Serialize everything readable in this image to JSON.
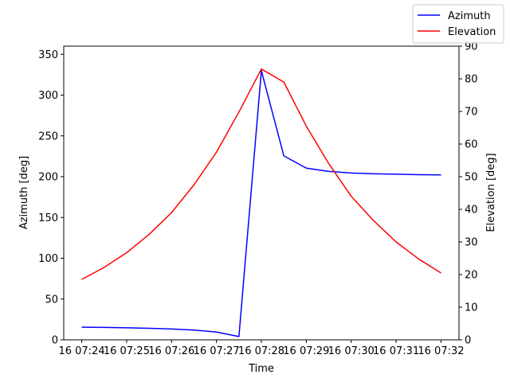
{
  "chart_data": {
    "type": "line",
    "x_axis": {
      "label": "Time",
      "ticks": [
        "16 07:24",
        "16 07:25",
        "16 07:26",
        "16 07:27",
        "16 07:28",
        "16 07:29",
        "16 07:30",
        "16 07:31",
        "16 07:32"
      ],
      "range_minutes": [
        23.6,
        32.4
      ]
    },
    "y_axis_left": {
      "label": "Azimuth [deg]",
      "range": [
        0,
        360
      ],
      "ticks": [
        0,
        50,
        100,
        150,
        200,
        250,
        300,
        350
      ]
    },
    "y_axis_right": {
      "label": "Elevation [deg]",
      "range": [
        0,
        90
      ],
      "ticks": [
        0,
        10,
        20,
        30,
        40,
        50,
        60,
        70,
        80,
        90
      ]
    },
    "series": [
      {
        "name": "Azimuth",
        "axis": "left",
        "color": "#0000ff",
        "x": [
          "07:24:00",
          "07:24:30",
          "07:25:00",
          "07:25:30",
          "07:26:00",
          "07:26:30",
          "07:27:00",
          "07:27:30",
          "07:28:00",
          "07:28:30",
          "07:29:00",
          "07:29:30",
          "07:30:00",
          "07:30:30",
          "07:31:00",
          "07:31:30",
          "07:32:00"
        ],
        "values": [
          15.5,
          15.2,
          14.8,
          14.2,
          13.3,
          12.0,
          9.5,
          4.0,
          330.0,
          225.5,
          210.5,
          206.5,
          204.5,
          203.5,
          203.0,
          202.5,
          202.2
        ]
      },
      {
        "name": "Elevation",
        "axis": "right",
        "color": "#ff0000",
        "x": [
          "07:24:00",
          "07:24:30",
          "07:25:00",
          "07:25:30",
          "07:26:00",
          "07:26:30",
          "07:27:00",
          "07:27:30",
          "07:28:00",
          "07:28:30",
          "07:29:00",
          "07:29:30",
          "07:30:00",
          "07:30:30",
          "07:31:00",
          "07:31:30",
          "07:32:00"
        ],
        "values": [
          18.5,
          22.2,
          26.7,
          32.3,
          39.0,
          47.5,
          57.5,
          69.8,
          83.0,
          79.0,
          65.5,
          54.0,
          44.0,
          36.5,
          30.0,
          24.8,
          20.5
        ]
      }
    ],
    "grid": false,
    "legend_position": "top-right"
  }
}
